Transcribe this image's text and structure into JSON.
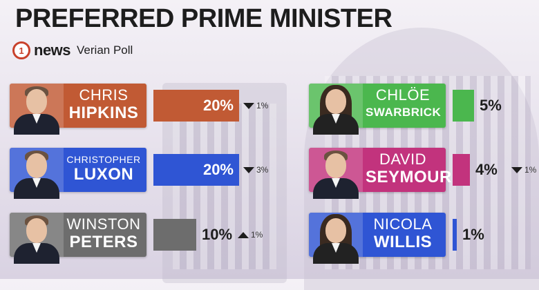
{
  "title": "PREFERRED PRIME MINISTER",
  "brand": {
    "logo_text": "1",
    "news": "news",
    "poll": "Verian Poll"
  },
  "chart_data": {
    "type": "bar",
    "title": "PREFERRED PRIME MINISTER",
    "unit": "%",
    "xlim": [
      0,
      20
    ],
    "series": [
      {
        "first": "CHRIS",
        "last": "HIPKINS",
        "value": 20,
        "label": "20%",
        "change": "1%",
        "direction": "down",
        "color": "#c15a34"
      },
      {
        "first": "CHRISTOPHER",
        "last": "LUXON",
        "value": 20,
        "label": "20%",
        "change": "3%",
        "direction": "down",
        "color": "#2f55d4"
      },
      {
        "first": "WINSTON",
        "last": "PETERS",
        "value": 10,
        "label": "10%",
        "change": "1%",
        "direction": "up",
        "color": "#6d6d6d"
      },
      {
        "first": "CHLÖE",
        "last": "SWARBRICK",
        "value": 5,
        "label": "5%",
        "change": "",
        "direction": "",
        "color": "#4bb74e"
      },
      {
        "first": "DAVID",
        "last": "SEYMOUR",
        "value": 4,
        "label": "4%",
        "change": "1%",
        "direction": "down",
        "color": "#c2337d"
      },
      {
        "first": "NICOLA",
        "last": "WILLIS",
        "value": 1,
        "label": "1%",
        "change": "",
        "direction": "",
        "color": "#2f55d4"
      }
    ]
  }
}
